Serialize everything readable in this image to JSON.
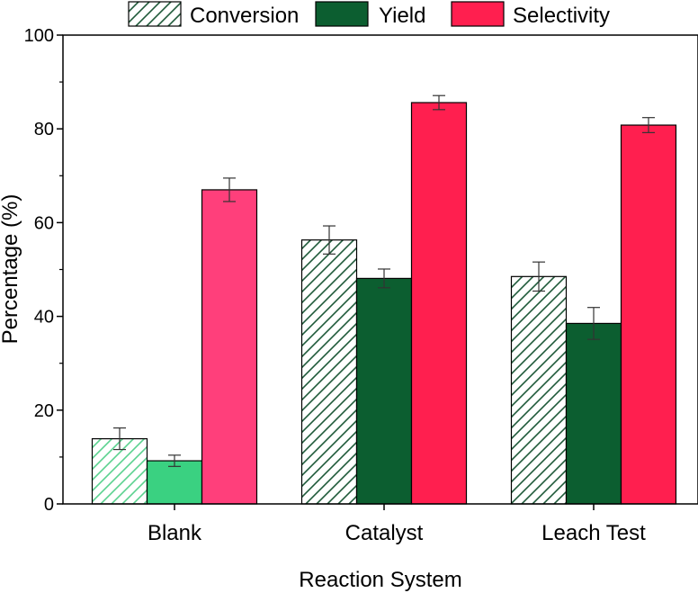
{
  "chart_data": {
    "type": "bar",
    "categories": [
      "Blank",
      "Catalyst",
      "Leach Test"
    ],
    "series": [
      {
        "name": "Conversion",
        "values": [
          13.9,
          56.3,
          48.5
        ],
        "errors": [
          2.3,
          3.0,
          3.1
        ],
        "pattern": "hatched"
      },
      {
        "name": "Yield",
        "values": [
          9.2,
          48.1,
          38.5
        ],
        "errors": [
          1.2,
          2.0,
          3.4
        ],
        "pattern": "solid"
      },
      {
        "name": "Selectivity",
        "values": [
          67.0,
          85.6,
          80.8
        ],
        "errors": [
          2.5,
          1.5,
          1.6
        ],
        "pattern": "solid"
      }
    ],
    "colors": {
      "conversion_hatch": "#1f5a3a",
      "yield": "#0c5e30",
      "selectivity": "#ff1f4f",
      "blank_conversion_hatch": "#5ad28f",
      "blank_yield": "#3ad181",
      "blank_selectivity": "#ff3f7b"
    },
    "title": "",
    "xlabel": "Reaction System",
    "ylabel": "Percentage (%)",
    "ylim": [
      0,
      100
    ],
    "yticks": [
      0,
      20,
      40,
      60,
      80,
      100
    ],
    "ytick_labels": [
      "0",
      "20",
      "40",
      "60",
      "80",
      "100"
    ],
    "grid": false,
    "legend_position": "top"
  }
}
